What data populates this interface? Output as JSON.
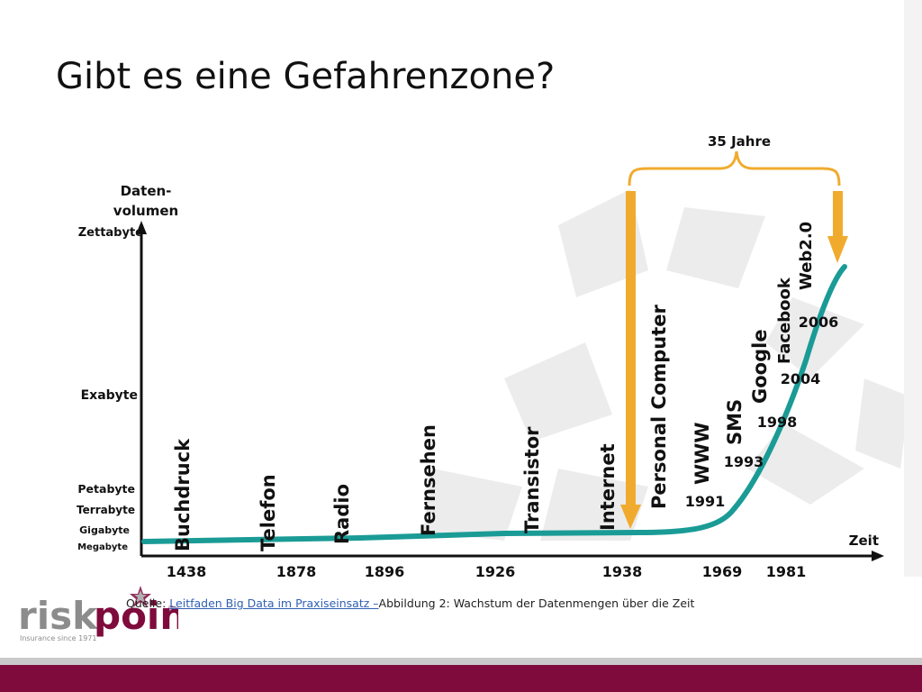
{
  "title": "Gibt es eine Gefahrenzone?",
  "span_label": "35 Jahre",
  "y_axis_title_1": "Daten-",
  "y_axis_title_2": "volumen",
  "y_levels": [
    "Zettabyte",
    "Exabyte",
    "Petabyte",
    "Terrabyte",
    "Gigabyte",
    "Megabyte"
  ],
  "x_axis_label": "Zeit",
  "x_years": [
    "1438",
    "1878",
    "1896",
    "1926",
    "1938",
    "1969",
    "1981"
  ],
  "milestones": [
    "Buchdruck",
    "Telefon",
    "Radio",
    "Fernsehen",
    "Transistor",
    "Internet",
    "Personal Computer",
    "WWW",
    "SMS",
    "Google",
    "Facebook",
    "Web2.0"
  ],
  "curve_years": [
    "1991",
    "1993",
    "1998",
    "2004",
    "2006"
  ],
  "source": {
    "prefix": "Quelle: ",
    "link": " Leitfaden Big Data im Praxiseinsatz –",
    "suffix": "Abbildung 2: Wachstum der Datenmengen über die Zeit"
  },
  "logo": {
    "text": "riskpoint",
    "tagline": "Insurance since 1971",
    "registered": "®"
  },
  "colors": {
    "curve": "#1a9b96",
    "arrow": "#f0ab2e",
    "brand": "#7e0b3c",
    "logo_gray": "#8c8c8c"
  }
}
